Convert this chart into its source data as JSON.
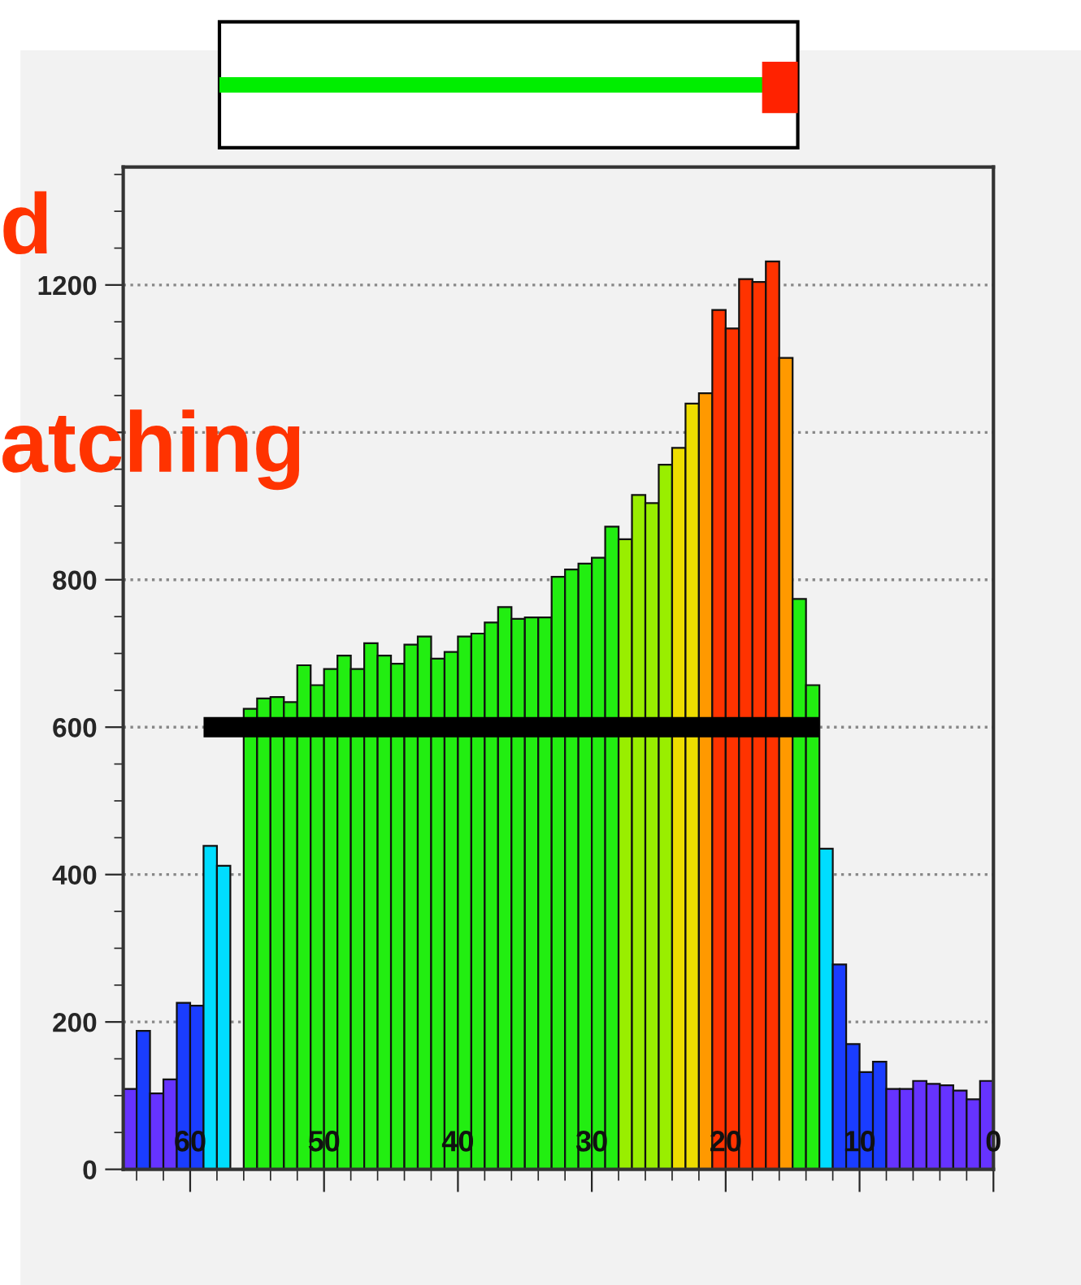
{
  "chart_data": {
    "type": "histogram",
    "bins": [
      65,
      64,
      63,
      62,
      61,
      60,
      59,
      58,
      57,
      56,
      55,
      54,
      53,
      52,
      51,
      50,
      49,
      48,
      47,
      46,
      45,
      44,
      43,
      42,
      41,
      40,
      39,
      38,
      37,
      36,
      35,
      34,
      33,
      32,
      31,
      30,
      29,
      28,
      27,
      26,
      25,
      24,
      23,
      22,
      21,
      20,
      19,
      18,
      17,
      16,
      15,
      14,
      13,
      12,
      11,
      10,
      9,
      8,
      7,
      6,
      5,
      4,
      3,
      2,
      1,
      0
    ],
    "values": [
      109,
      188,
      103,
      122,
      226,
      222,
      439,
      412,
      null,
      625,
      639,
      641,
      634,
      684,
      657,
      679,
      697,
      679,
      714,
      697,
      686,
      712,
      723,
      693,
      702,
      723,
      727,
      742,
      763,
      747,
      749,
      749,
      804,
      814,
      822,
      830,
      872,
      855,
      915,
      904,
      956,
      979,
      1039,
      1053,
      1166,
      1141,
      1208,
      1204,
      1232,
      1101,
      774,
      657,
      435,
      278,
      170,
      132,
      146,
      109,
      109,
      120,
      116,
      114,
      107,
      95,
      120
    ],
    "colors": [
      "#6633ff",
      "#1a3dff",
      "#6633ff",
      "#6633ff",
      "#1a3dff",
      "#1a3dff",
      "#00ddff",
      "#00ddff",
      "#22ee11",
      "#22ee11",
      "#22ee11",
      "#22ee11",
      "#22ee11",
      "#22ee11",
      "#22ee11",
      "#22ee11",
      "#22ee11",
      "#22ee11",
      "#22ee11",
      "#22ee11",
      "#22ee11",
      "#22ee11",
      "#22ee11",
      "#22ee11",
      "#22ee11",
      "#22ee11",
      "#22ee11",
      "#22ee11",
      "#22ee11",
      "#22ee11",
      "#22ee11",
      "#22ee11",
      "#22ee11",
      "#22ee11",
      "#22ee11",
      "#22ee11",
      "#22ee11",
      "#99ee00",
      "#99ee00",
      "#99ee00",
      "#99ee00",
      "#eedd00",
      "#eedd00",
      "#ff9900",
      "#ff3300",
      "#ff3300",
      "#ff3300",
      "#ff3300",
      "#ff3300",
      "#ff9900",
      "#22ee11",
      "#22ee11",
      "#00ddff",
      "#1a3dff",
      "#1a3dff",
      "#1a3dff",
      "#1a3dff",
      "#6633ff",
      "#6633ff",
      "#6633ff",
      "#6633ff",
      "#6633ff",
      "#6633ff",
      "#6633ff",
      "#6633ff"
    ],
    "series": [
      {
        "type": "line",
        "x": [
          59,
          13
        ],
        "values": [
          600,
          600
        ],
        "color": "#000000"
      }
    ],
    "xlim": [
      65,
      0
    ],
    "xticks": [
      60,
      50,
      40,
      30,
      20,
      10,
      0
    ],
    "ylim": [
      0,
      1360
    ],
    "yticks": [
      0,
      200,
      400,
      600,
      800,
      {
        "value": 1000,
        "label": null
      },
      1200
    ],
    "grid": "y",
    "annotations": [
      "d",
      "atching"
    ]
  }
}
